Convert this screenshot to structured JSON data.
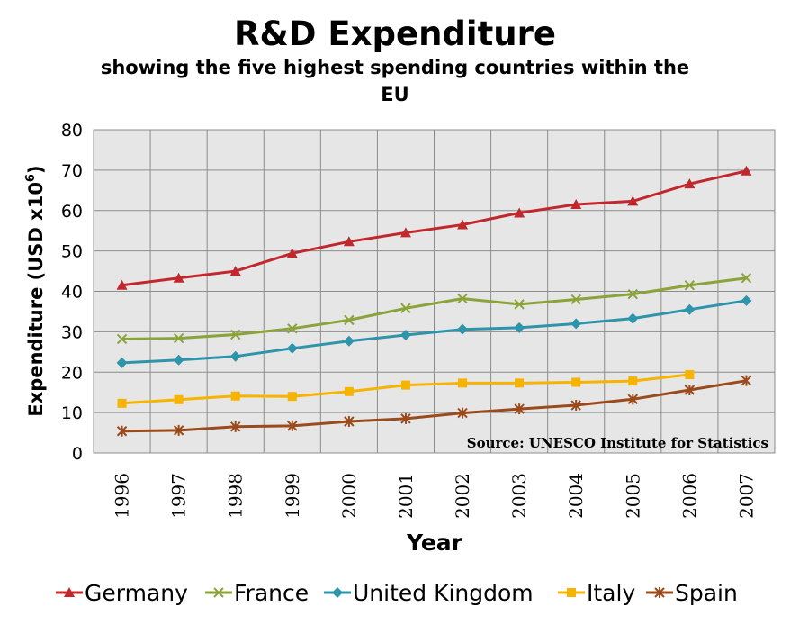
{
  "chart_data": {
    "type": "line",
    "title": "R&D Expenditure",
    "subtitle_lines": [
      "showing the five highest spending countries within the",
      "EU"
    ],
    "xlabel": "Year",
    "ylabel": "Expenditure (USD x10",
    "ylabel_superscript": "6",
    "ylabel_suffix": ")",
    "ylim": [
      0,
      80
    ],
    "yticks": [
      0,
      10,
      20,
      30,
      40,
      50,
      60,
      70,
      80
    ],
    "grid": true,
    "legend_position": "bottom",
    "annotation": "Source: UNESCO Institute for Statistics",
    "categories": [
      "1996",
      "1997",
      "1998",
      "1999",
      "2000",
      "2001",
      "2002",
      "2003",
      "2004",
      "2005",
      "2006",
      "2007"
    ],
    "series": [
      {
        "name": "Germany",
        "color": "#c0282d",
        "marker": "triangle",
        "values": [
          41.5,
          43.3,
          45.0,
          49.4,
          52.3,
          54.5,
          56.5,
          59.4,
          61.5,
          62.3,
          66.6,
          69.8
        ]
      },
      {
        "name": "France",
        "color": "#8aa33b",
        "marker": "x",
        "values": [
          28.2,
          28.4,
          29.3,
          30.8,
          32.9,
          35.8,
          38.2,
          36.8,
          38.0,
          39.3,
          41.5,
          43.3
        ]
      },
      {
        "name": "United Kingdom",
        "color": "#2e94aa",
        "marker": "diamond",
        "values": [
          22.3,
          23.0,
          23.9,
          25.9,
          27.7,
          29.2,
          30.6,
          31.0,
          32.0,
          33.3,
          35.5,
          37.7
        ]
      },
      {
        "name": "Italy",
        "color": "#f6b300",
        "marker": "square",
        "values": [
          12.3,
          13.2,
          14.1,
          14.0,
          15.2,
          16.8,
          17.3,
          17.3,
          17.5,
          17.8,
          19.4,
          null
        ]
      },
      {
        "name": "Spain",
        "color": "#9a4a1c",
        "marker": "star",
        "values": [
          5.4,
          5.6,
          6.5,
          6.7,
          7.8,
          8.5,
          9.9,
          10.9,
          11.8,
          13.3,
          15.6,
          17.9
        ]
      }
    ]
  }
}
